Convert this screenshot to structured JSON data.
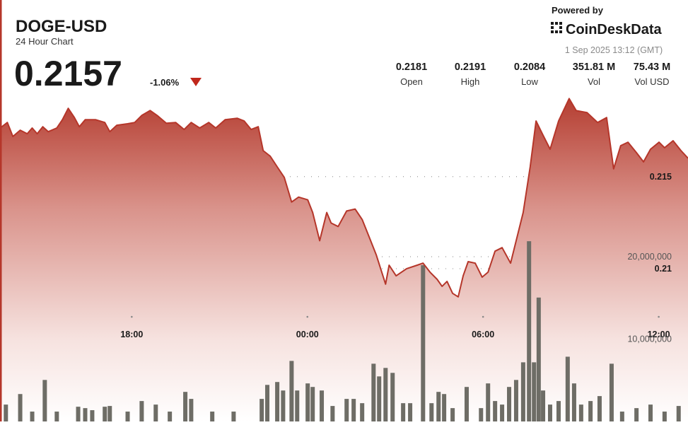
{
  "header": {
    "brand_prefix": "Powered by",
    "brand": "CoinDeskData",
    "timestamp": "1 Sep 2025 13:12 (GMT)",
    "price": "0.2157",
    "change": "-1.06%",
    "stats": [
      {
        "value": "0.2181",
        "label": "Open"
      },
      {
        "value": "0.2191",
        "label": "High"
      },
      {
        "value": "0.2084",
        "label": "Low"
      },
      {
        "value": "351.81 M",
        "label": "Vol"
      },
      {
        "value": "75.43 M",
        "label": "Vol USD"
      }
    ]
  },
  "chart_data": {
    "type": "line",
    "title": "DOGE-USD",
    "subtitle": "24 Hour Chart",
    "xlim": [
      13.5,
      37.0
    ],
    "xticks": [
      {
        "value": 18,
        "label": "18:00"
      },
      {
        "value": 24,
        "label": "00:00"
      },
      {
        "value": 30,
        "label": "06:00"
      },
      {
        "value": 36,
        "label": "12:00"
      }
    ],
    "ylim": [
      0.2017,
      0.2196
    ],
    "yticks": [
      0.21,
      0.215
    ],
    "y2lim": [
      0,
      40000000
    ],
    "y2ticks": [
      {
        "value": 10000000,
        "label": "10,000,000"
      },
      {
        "value": 20000000,
        "label": "20,000,000"
      }
    ],
    "grid": true,
    "series": [
      {
        "type": "line",
        "color": "#b5362a",
        "x": [
          13.51,
          13.75,
          13.94,
          14.19,
          14.43,
          14.6,
          14.77,
          14.96,
          15.15,
          15.44,
          15.63,
          15.83,
          16.04,
          16.21,
          16.41,
          16.77,
          17.08,
          17.25,
          17.49,
          17.86,
          18.1,
          18.34,
          18.63,
          18.87,
          19.18,
          19.5,
          19.79,
          20.03,
          20.32,
          20.63,
          20.87,
          21.19,
          21.6,
          21.84,
          22.08,
          22.32,
          22.49,
          22.73,
          22.97,
          23.21,
          23.46,
          23.7,
          24.01,
          24.18,
          24.42,
          24.66,
          24.81,
          25.05,
          25.34,
          25.63,
          25.87,
          26.11,
          26.35,
          26.67,
          26.79,
          27.03,
          27.39,
          27.75,
          27.95,
          28.19,
          28.43,
          28.6,
          28.77,
          28.96,
          29.15,
          29.32,
          29.49,
          29.73,
          29.97,
          30.17,
          30.41,
          30.65,
          30.94,
          31.37,
          31.61,
          31.81,
          32.05,
          32.29,
          32.58,
          32.94,
          33.18,
          33.55,
          33.91,
          34.22,
          34.46,
          34.7,
          34.95,
          35.24,
          35.48,
          35.72,
          36.01,
          36.2,
          36.49,
          36.76,
          37.0
        ],
        "values": [
          0.21764,
          0.21794,
          0.21718,
          0.21752,
          0.21733,
          0.21764,
          0.21733,
          0.21771,
          0.21744,
          0.21764,
          0.21809,
          0.21871,
          0.21821,
          0.21771,
          0.21809,
          0.21809,
          0.21794,
          0.21744,
          0.21779,
          0.21787,
          0.21794,
          0.21832,
          0.21859,
          0.21832,
          0.2179,
          0.21794,
          0.21756,
          0.21794,
          0.21764,
          0.21794,
          0.21764,
          0.21809,
          0.21817,
          0.21802,
          0.21756,
          0.21771,
          0.21641,
          0.21611,
          0.21553,
          0.21496,
          0.21362,
          0.21389,
          0.21374,
          0.21305,
          0.21152,
          0.21305,
          0.21248,
          0.21229,
          0.21313,
          0.21324,
          0.21267,
          0.21172,
          0.21076,
          0.20916,
          0.21019,
          0.20961,
          0.21,
          0.21019,
          0.2103,
          0.20981,
          0.20942,
          0.20904,
          0.20931,
          0.20866,
          0.20847,
          0.20961,
          0.21038,
          0.2103,
          0.20954,
          0.20981,
          0.21095,
          0.21114,
          0.2103,
          0.21305,
          0.21553,
          0.21802,
          0.21725,
          0.21649,
          0.21802,
          0.21924,
          0.21859,
          0.21848,
          0.21794,
          0.21821,
          0.21542,
          0.21668,
          0.21687,
          0.2163,
          0.2158,
          0.21649,
          0.21687,
          0.21657,
          0.21695,
          0.21641,
          0.216
        ]
      },
      {
        "type": "bar",
        "axis": "y2",
        "color": "#6e6d66",
        "x": [
          13.7,
          14.19,
          14.6,
          15.03,
          15.44,
          16.17,
          16.41,
          16.65,
          17.08,
          17.25,
          17.86,
          18.34,
          18.82,
          19.3,
          19.83,
          20.03,
          20.75,
          21.48,
          22.44,
          22.63,
          22.97,
          23.17,
          23.46,
          23.65,
          24.01,
          24.18,
          24.49,
          24.86,
          25.34,
          25.58,
          25.87,
          26.26,
          26.45,
          26.67,
          26.91,
          27.27,
          27.51,
          27.95,
          28.24,
          28.48,
          28.67,
          28.96,
          29.44,
          29.93,
          30.17,
          30.41,
          30.65,
          30.89,
          31.13,
          31.37,
          31.57,
          31.74,
          31.9,
          32.05,
          32.29,
          32.58,
          32.89,
          33.11,
          33.35,
          33.67,
          33.98,
          34.39,
          34.75,
          35.24,
          35.72,
          36.2,
          36.68
        ],
        "values": [
          2050000,
          3330000,
          1200000,
          5040000,
          1200000,
          1790000,
          1620000,
          1370000,
          1790000,
          1880000,
          1200000,
          2480000,
          2050000,
          1200000,
          3590000,
          2740000,
          1200000,
          1200000,
          2740000,
          4440000,
          4790000,
          3760000,
          7350000,
          3760000,
          4620000,
          4190000,
          3760000,
          1880000,
          2740000,
          2740000,
          2220000,
          7010000,
          5470000,
          6500000,
          5900000,
          2220000,
          2220000,
          18970000,
          2220000,
          3590000,
          3330000,
          1620000,
          4190000,
          1620000,
          4620000,
          2480000,
          2050000,
          4190000,
          5040000,
          7180000,
          21880000,
          7180000,
          15040000,
          3760000,
          2050000,
          2480000,
          7860000,
          4620000,
          2050000,
          2480000,
          3080000,
          7010000,
          1200000,
          1620000,
          2050000,
          1200000,
          1880000
        ]
      }
    ]
  }
}
